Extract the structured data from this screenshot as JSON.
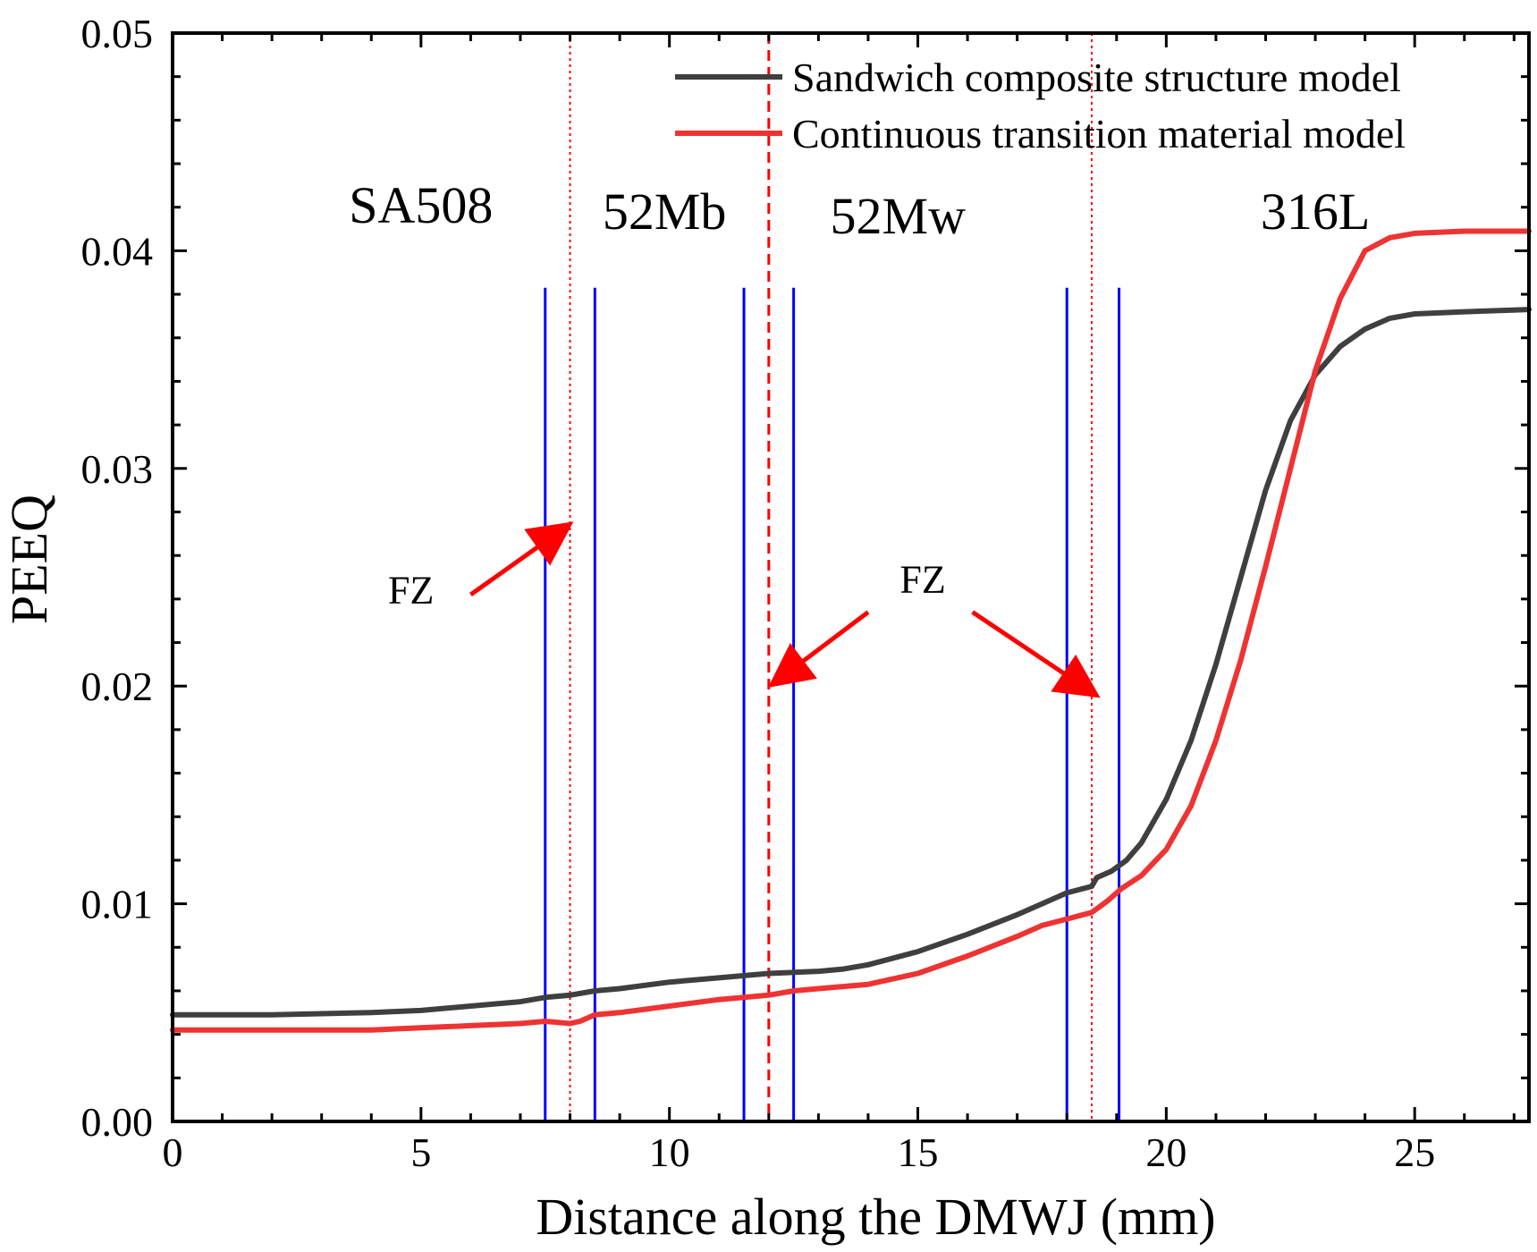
{
  "chart_data": {
    "type": "line",
    "xlabel": "Distance along the DMWJ (mm)",
    "ylabel": "PEEQ",
    "xlim": [
      0,
      27.3
    ],
    "ylim": [
      0,
      0.05
    ],
    "x_ticks": [
      0,
      5,
      10,
      15,
      20,
      25
    ],
    "x_tick_labels": [
      "0",
      "5",
      "10",
      "15",
      "20",
      "25"
    ],
    "y_ticks": [
      0,
      0.01,
      0.02,
      0.03,
      0.04,
      0.05
    ],
    "y_tick_labels": [
      "0.00",
      "0.01",
      "0.02",
      "0.03",
      "0.04",
      "0.05"
    ],
    "legend_position": "top-right",
    "grid": false,
    "series": [
      {
        "name": "Sandwich composite structure model",
        "color": "#3f3f3f",
        "x": [
          0,
          2,
          4,
          5,
          6,
          7,
          7.5,
          8.0,
          8.5,
          9,
          10,
          11,
          12,
          13,
          13.5,
          14,
          15,
          16,
          17,
          17.5,
          18,
          18.5,
          18.6,
          18.9,
          19.2,
          19.5,
          20,
          20.5,
          21,
          21.5,
          22,
          22.5,
          23,
          23.5,
          24,
          24.5,
          25,
          26,
          27.3
        ],
        "values": [
          0.0049,
          0.0049,
          0.005,
          0.0051,
          0.0053,
          0.0055,
          0.0057,
          0.0058,
          0.006,
          0.0061,
          0.0064,
          0.0066,
          0.0068,
          0.0069,
          0.007,
          0.0072,
          0.0078,
          0.0086,
          0.0095,
          0.01,
          0.0105,
          0.0108,
          0.0112,
          0.0115,
          0.012,
          0.0128,
          0.0148,
          0.0175,
          0.021,
          0.025,
          0.029,
          0.0322,
          0.0343,
          0.0356,
          0.0364,
          0.0369,
          0.0371,
          0.0372,
          0.0373
        ]
      },
      {
        "name": "Continuous transition material model",
        "color": "#ee3333",
        "x": [
          0,
          2,
          4,
          5,
          6,
          7,
          7.5,
          8.0,
          8.2,
          8.5,
          9,
          10,
          11,
          11.5,
          12,
          12.5,
          13,
          14,
          15,
          16,
          17,
          17.5,
          18,
          18.5,
          18.8,
          19.1,
          19.5,
          20,
          20.5,
          21,
          21.5,
          22,
          22.5,
          23,
          23.5,
          24,
          24.5,
          25,
          26,
          27.3
        ],
        "values": [
          0.0042,
          0.0042,
          0.0042,
          0.0043,
          0.0044,
          0.0045,
          0.0046,
          0.0045,
          0.0046,
          0.0049,
          0.005,
          0.0053,
          0.0056,
          0.0057,
          0.0058,
          0.006,
          0.0061,
          0.0063,
          0.0068,
          0.0076,
          0.0085,
          0.009,
          0.0093,
          0.0096,
          0.0101,
          0.0107,
          0.0113,
          0.0125,
          0.0145,
          0.0175,
          0.0212,
          0.0255,
          0.03,
          0.0345,
          0.0378,
          0.04,
          0.0406,
          0.0408,
          0.0409,
          0.0409
        ]
      }
    ],
    "boundary_lines_blue": [
      7.5,
      8.5,
      11.5,
      12.5,
      18.0,
      19.05
    ],
    "boundary_line_top": 0.0383,
    "fusion_zone_lines_red": [
      {
        "x": 8.0,
        "style": "dotted"
      },
      {
        "x": 12.0,
        "style": "dashed"
      },
      {
        "x": 18.5,
        "style": "dotted"
      }
    ],
    "region_labels": [
      {
        "text": "SA508",
        "x": 5.0,
        "y": 0.0413
      },
      {
        "text": "52Mb",
        "x": 9.9,
        "y": 0.041
      },
      {
        "text": "52Mw",
        "x": 14.6,
        "y": 0.0408
      },
      {
        "text": "316L",
        "x": 23.0,
        "y": 0.041
      }
    ],
    "annotations": [
      {
        "text": "FZ",
        "x": 4.8,
        "y": 0.0238
      },
      {
        "text": "FZ",
        "x": 15.1,
        "y": 0.0243
      }
    ],
    "arrows": [
      {
        "from": [
          6.0,
          0.0242
        ],
        "to": [
          7.85,
          0.0272
        ]
      },
      {
        "from": [
          14.0,
          0.0234
        ],
        "to": [
          12.2,
          0.0203
        ]
      },
      {
        "from": [
          16.1,
          0.0234
        ],
        "to": [
          18.45,
          0.0198
        ]
      }
    ]
  }
}
